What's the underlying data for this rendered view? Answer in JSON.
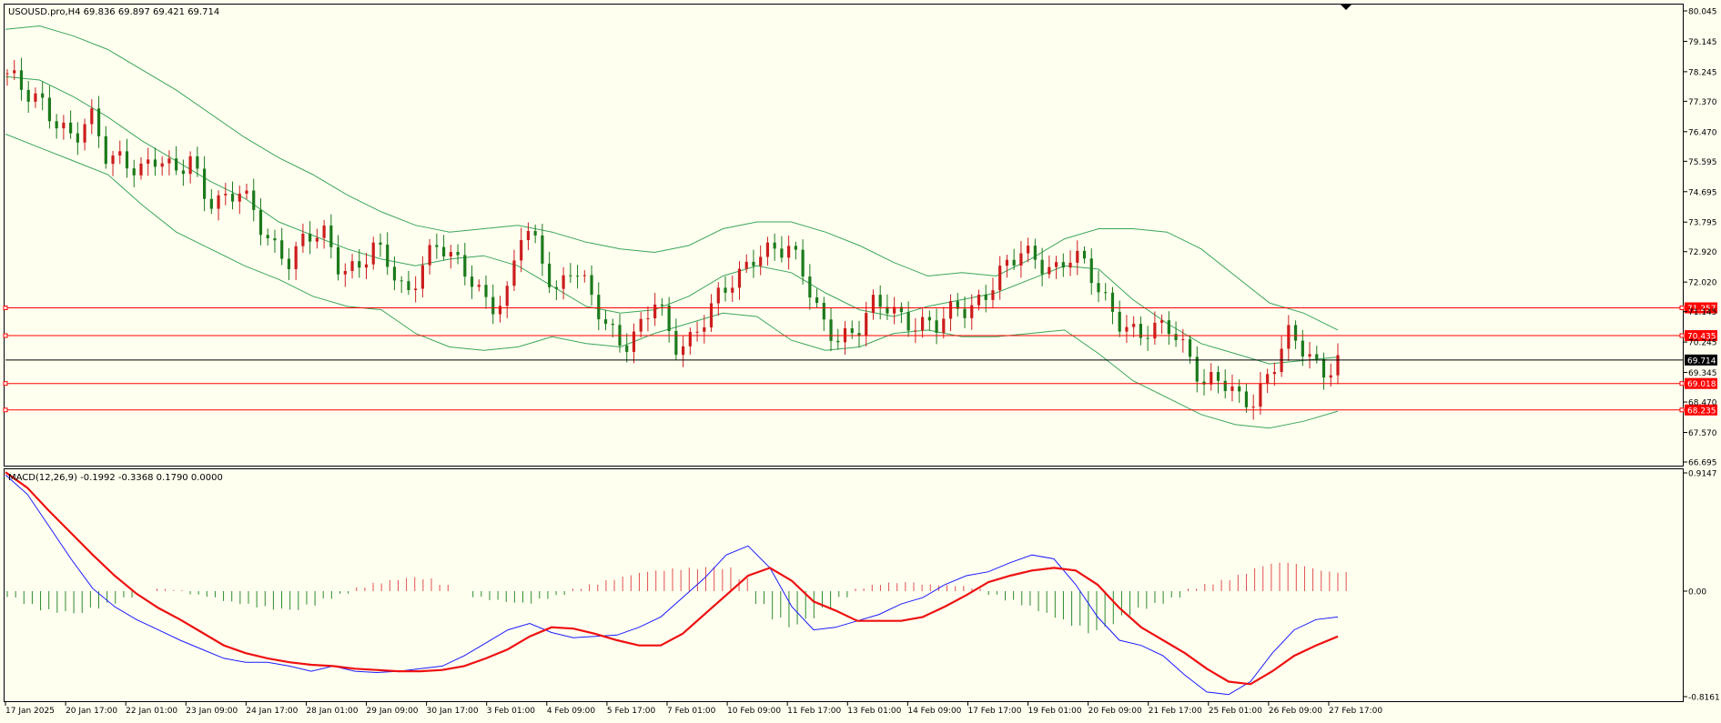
{
  "colors": {
    "background": "#fffff0",
    "frame": "#000000",
    "bull_candle": "#cc1d1d",
    "bear_candle": "#1b7a1b",
    "bollinger": "#3aa65a",
    "hline": "#ff0000",
    "price_line": "#000000",
    "price_label_bg": "#000000",
    "hline_label_bg": "#ff0000",
    "macd_hist_pos": "#e05050",
    "macd_hist_neg": "#2e8b2e",
    "macd_line": "#1a1aff",
    "signal_line": "#ee1010"
  },
  "chart_data": {
    "type": "candlestick",
    "title": "USOUSD.pro,H4  69.836 69.897 69.421 69.714",
    "price_axis_ticks": [
      "80.045",
      "79.145",
      "78.245",
      "77.370",
      "76.470",
      "75.595",
      "74.695",
      "73.795",
      "72.920",
      "72.020",
      "71.145",
      "70.245",
      "69.345",
      "68.470",
      "67.570",
      "66.695"
    ],
    "price_axis_range": [
      66.695,
      80.045
    ],
    "x_labels": [
      "17 Jan 2025",
      "20 Jan 17:00",
      "22 Jan 01:00",
      "23 Jan 09:00",
      "24 Jan 17:00",
      "28 Jan 01:00",
      "29 Jan 09:00",
      "30 Jan 17:00",
      "3 Feb 01:00",
      "4 Feb 09:00",
      "5 Feb 17:00",
      "7 Feb 01:00",
      "10 Feb 09:00",
      "11 Feb 17:00",
      "13 Feb 01:00",
      "14 Feb 09:00",
      "17 Feb 17:00",
      "19 Feb 01:00",
      "20 Feb 09:00",
      "21 Feb 17:00",
      "25 Feb 01:00",
      "26 Feb 09:00",
      "27 Feb 17:00"
    ],
    "last_price": "69.714",
    "horizontal_lines": [
      {
        "price": 71.257,
        "label": "71.257"
      },
      {
        "price": 70.435,
        "label": "70.435"
      },
      {
        "price": 69.018,
        "label": "69.018"
      },
      {
        "price": 68.235,
        "label": "68.235"
      }
    ],
    "close_path": [
      78.2,
      77.5,
      77.3,
      76.9,
      76.3,
      76.8,
      75.6,
      75.8,
      75.4,
      75.6,
      75.1,
      75.8,
      74.6,
      74.3,
      74.6,
      74.0,
      73.2,
      72.6,
      73.2,
      73.5,
      72.6,
      72.4,
      72.9,
      72.5,
      71.7,
      72.7,
      73.0,
      72.5,
      72.2,
      71.4,
      71.4,
      73.6,
      73.0,
      71.8,
      72.5,
      71.5,
      70.8,
      70.3,
      70.6,
      71.4,
      70.1,
      70.4,
      71.1,
      71.6,
      72.1,
      73.0,
      73.1,
      72.9,
      72.0,
      70.9,
      70.5,
      70.4,
      71.2,
      71.4,
      71.0,
      70.7,
      70.6,
      71.3,
      71.4,
      71.8,
      72.3,
      72.9,
      72.8,
      72.4,
      72.7,
      72.3,
      71.6,
      70.9,
      70.3,
      70.5,
      70.8,
      70.0,
      68.9,
      69.0,
      68.6,
      68.7,
      69.4,
      70.3,
      70.0,
      69.5,
      69.7
    ],
    "bollinger_upper_path": [
      79.5,
      79.6,
      79.3,
      78.9,
      78.3,
      77.7,
      77.0,
      76.3,
      75.7,
      75.2,
      74.6,
      74.1,
      73.7,
      73.5,
      73.6,
      73.7,
      73.5,
      73.2,
      73.0,
      72.9,
      73.1,
      73.6,
      73.8,
      73.8,
      73.5,
      73.1,
      72.6,
      72.2,
      72.3,
      72.2,
      72.7,
      73.3,
      73.6,
      73.6,
      73.5,
      73.0,
      72.2,
      71.4,
      71.1,
      70.6
    ],
    "bollinger_middle_path": [
      78.1,
      78.0,
      77.5,
      76.9,
      76.2,
      75.6,
      75.0,
      74.5,
      73.8,
      73.4,
      73.0,
      72.7,
      72.5,
      72.7,
      72.8,
      72.5,
      71.9,
      71.3,
      71.1,
      71.2,
      71.6,
      72.2,
      72.5,
      72.3,
      71.7,
      71.2,
      71.0,
      71.3,
      71.5,
      71.7,
      72.1,
      72.5,
      72.4,
      71.5,
      70.8,
      70.2,
      69.9,
      69.6,
      69.7,
      69.8
    ],
    "bollinger_lower_path": [
      76.4,
      76.0,
      75.6,
      75.2,
      74.3,
      73.5,
      73.0,
      72.5,
      72.1,
      71.6,
      71.3,
      71.2,
      70.5,
      70.1,
      70.0,
      70.1,
      70.4,
      70.2,
      70.1,
      70.5,
      70.8,
      71.1,
      71.0,
      70.3,
      70.0,
      70.1,
      70.5,
      70.6,
      70.4,
      70.4,
      70.5,
      70.6,
      69.9,
      69.1,
      68.6,
      68.1,
      67.8,
      67.7,
      67.9,
      68.2
    ],
    "macd_indicator": {
      "label": "MACD(12,26,9) -0.1992 -0.3368 0.1790 0.0000",
      "axis_ticks": [
        "0.9147",
        "0.00",
        "-0.8161"
      ],
      "range": [
        -0.8161,
        0.9147
      ],
      "histogram": [
        -0.05,
        -0.1,
        -0.15,
        -0.18,
        -0.2,
        -0.15,
        -0.1,
        -0.05,
        0,
        0.02,
        0.01,
        -0.03,
        -0.05,
        -0.08,
        -0.1,
        -0.13,
        -0.16,
        -0.17,
        -0.12,
        -0.06,
        -0.02,
        0.03,
        0.07,
        0.1,
        0.12,
        0.1,
        0.05,
        0,
        -0.05,
        -0.08,
        -0.1,
        -0.1,
        -0.06,
        -0.03,
        0.02,
        0.06,
        0.1,
        0.13,
        0.15,
        0.16,
        0.18,
        0.2,
        0.22,
        0.2,
        0.1,
        -0.1,
        -0.22,
        -0.3,
        -0.25,
        -0.15,
        -0.05,
        0.02,
        0.05,
        0.07,
        0.08,
        0.06,
        0.05,
        0.04,
        0.02,
        -0.03,
        -0.08,
        -0.13,
        -0.18,
        -0.22,
        -0.27,
        -0.33,
        -0.3,
        -0.22,
        -0.15,
        -0.1,
        -0.05,
        0.02,
        0.06,
        0.1,
        0.15,
        0.2,
        0.22,
        0.22,
        0.2,
        0.18,
        0.17
      ],
      "macd_line": [
        0.9,
        0.75,
        0.5,
        0.25,
        0.02,
        -0.12,
        -0.22,
        -0.3,
        -0.38,
        -0.45,
        -0.52,
        -0.55,
        -0.55,
        -0.58,
        -0.62,
        -0.58,
        -0.62,
        -0.63,
        -0.62,
        -0.6,
        -0.58,
        -0.5,
        -0.4,
        -0.3,
        -0.25,
        -0.32,
        -0.36,
        -0.35,
        -0.34,
        -0.28,
        -0.2,
        -0.05,
        0.1,
        0.28,
        0.35,
        0.18,
        -0.12,
        -0.3,
        -0.28,
        -0.23,
        -0.18,
        -0.1,
        -0.05,
        0.05,
        0.12,
        0.15,
        0.22,
        0.28,
        0.25,
        0.05,
        -0.2,
        -0.38,
        -0.42,
        -0.5,
        -0.65,
        -0.78,
        -0.8,
        -0.7,
        -0.48,
        -0.3,
        -0.22,
        -0.2
      ],
      "signal_line": [
        0.92,
        0.8,
        0.62,
        0.45,
        0.28,
        0.12,
        -0.02,
        -0.13,
        -0.22,
        -0.32,
        -0.42,
        -0.48,
        -0.52,
        -0.55,
        -0.57,
        -0.58,
        -0.6,
        -0.61,
        -0.62,
        -0.62,
        -0.61,
        -0.58,
        -0.52,
        -0.45,
        -0.35,
        -0.28,
        -0.29,
        -0.33,
        -0.38,
        -0.42,
        -0.42,
        -0.33,
        -0.18,
        -0.03,
        0.12,
        0.18,
        0.08,
        -0.08,
        -0.15,
        -0.23,
        -0.23,
        -0.23,
        -0.2,
        -0.12,
        -0.03,
        0.07,
        0.12,
        0.16,
        0.18,
        0.16,
        0.05,
        -0.13,
        -0.28,
        -0.38,
        -0.48,
        -0.6,
        -0.7,
        -0.72,
        -0.62,
        -0.5,
        -0.42,
        -0.35
      ]
    }
  }
}
